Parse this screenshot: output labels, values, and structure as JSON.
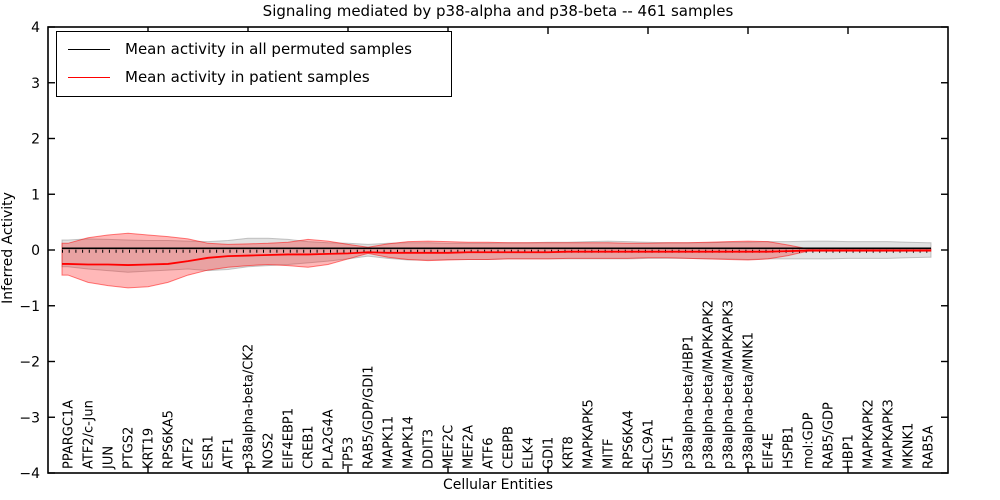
{
  "figure": {
    "background": "#ffffff"
  },
  "legend": {
    "items": [
      {
        "label": "Mean activity in all permuted samples",
        "color": "#000000"
      },
      {
        "label": "Mean activity in patient samples",
        "color": "#ff0000"
      }
    ]
  },
  "chart_data": {
    "type": "line",
    "title": "Signaling mediated by p38-alpha and p38-beta -- 461 samples",
    "xlabel": "Cellular Entities",
    "ylabel": "Inferred Activity",
    "xlim": [
      0,
      45
    ],
    "ylim": [
      -4,
      4
    ],
    "yticks": [
      -4,
      -3,
      -2,
      -1,
      0,
      1,
      2,
      3,
      4
    ],
    "xticks_major": [
      5,
      10,
      15,
      20,
      25,
      30,
      35,
      40
    ],
    "grid": false,
    "legend_position": "upper left",
    "categories": [
      "PPARGC1A",
      "ATF2/c-Jun",
      "JUN",
      "PTGS2",
      "KRT19",
      "RPS6KA5",
      "ATF2",
      "ESR1",
      "ATF1",
      "p38alpha-beta/CK2",
      "NOS2",
      "EIF4EBP1",
      "CREB1",
      "PLA2G4A",
      "TP53",
      "RAB5/GDP/GDI1",
      "MAPK11",
      "MAPK14",
      "DDIT3",
      "MEF2C",
      "MEF2A",
      "ATF6",
      "CEBPB",
      "ELK4",
      "GDI1",
      "KRT8",
      "MAPKAPK5",
      "MITF",
      "RPS6KA4",
      "SLC9A1",
      "USF1",
      "p38alpha-beta/HBP1",
      "p38alpha-beta/MAPKAPK2",
      "p38alpha-beta/MAPKAPK3",
      "p38alpha-beta/MNK1",
      "EIF4E",
      "HSPB1",
      "mol:GDP",
      "RAB5/GDP",
      "HBP1",
      "MAPKAPK2",
      "MAPKAPK3",
      "MKNK1",
      "RAB5A"
    ],
    "series": [
      {
        "name": "Mean activity in all permuted samples",
        "color": "#000000",
        "style": "solid",
        "values": [
          0.03,
          0.03,
          0.03,
          0.03,
          0.03,
          0.03,
          0.03,
          0.03,
          0.03,
          0.03,
          0.03,
          0.03,
          0.03,
          0.03,
          0.03,
          0.03,
          0.03,
          0.03,
          0.03,
          0.03,
          0.03,
          0.03,
          0.03,
          0.03,
          0.03,
          0.03,
          0.03,
          0.03,
          0.03,
          0.03,
          0.03,
          0.03,
          0.03,
          0.03,
          0.03,
          0.03,
          0.03,
          0.03,
          0.03,
          0.03,
          0.03,
          0.03,
          0.03,
          0.03
        ]
      },
      {
        "name": "Mean activity in patient samples",
        "color": "#ff0000",
        "style": "solid",
        "values": [
          -0.25,
          -0.26,
          -0.26,
          -0.27,
          -0.26,
          -0.25,
          -0.2,
          -0.14,
          -0.11,
          -0.1,
          -0.09,
          -0.08,
          -0.08,
          -0.07,
          -0.06,
          -0.04,
          -0.05,
          -0.05,
          -0.05,
          -0.05,
          -0.04,
          -0.04,
          -0.04,
          -0.04,
          -0.04,
          -0.03,
          -0.03,
          -0.03,
          -0.03,
          -0.03,
          -0.03,
          -0.03,
          -0.03,
          -0.03,
          -0.03,
          -0.03,
          -0.02,
          -0.01,
          -0.01,
          -0.01,
          -0.01,
          -0.01,
          -0.01,
          -0.01
        ]
      }
    ],
    "bands": [
      {
        "name": "permuted-envelope",
        "color": "#888888",
        "fill_opacity": 0.25,
        "edge_opacity": 0.45,
        "upper": [
          0.18,
          0.2,
          0.19,
          0.18,
          0.17,
          0.17,
          0.16,
          0.15,
          0.17,
          0.21,
          0.21,
          0.19,
          0.15,
          0.13,
          0.12,
          0.1,
          0.12,
          0.13,
          0.13,
          0.12,
          0.12,
          0.12,
          0.13,
          0.13,
          0.14,
          0.14,
          0.15,
          0.16,
          0.15,
          0.14,
          0.13,
          0.13,
          0.13,
          0.14,
          0.14,
          0.15,
          0.15,
          0.16,
          0.16,
          0.15,
          0.15,
          0.15,
          0.14,
          0.13
        ],
        "lower": [
          -0.3,
          -0.34,
          -0.37,
          -0.4,
          -0.38,
          -0.36,
          -0.34,
          -0.37,
          -0.35,
          -0.3,
          -0.28,
          -0.26,
          -0.23,
          -0.2,
          -0.16,
          -0.11,
          -0.15,
          -0.18,
          -0.18,
          -0.17,
          -0.17,
          -0.17,
          -0.16,
          -0.16,
          -0.16,
          -0.16,
          -0.16,
          -0.16,
          -0.16,
          -0.15,
          -0.15,
          -0.15,
          -0.16,
          -0.16,
          -0.17,
          -0.16,
          -0.16,
          -0.16,
          -0.16,
          -0.15,
          -0.15,
          -0.15,
          -0.14,
          -0.13
        ]
      },
      {
        "name": "patient-envelope",
        "color": "#ff0000",
        "fill_opacity": 0.28,
        "edge_opacity": 0.5,
        "upper": [
          0.12,
          0.22,
          0.27,
          0.3,
          0.27,
          0.24,
          0.2,
          0.12,
          0.1,
          0.11,
          0.12,
          0.14,
          0.19,
          0.16,
          0.1,
          0.05,
          0.11,
          0.15,
          0.16,
          0.15,
          0.14,
          0.14,
          0.13,
          0.13,
          0.13,
          0.13,
          0.13,
          0.13,
          0.12,
          0.12,
          0.13,
          0.13,
          0.14,
          0.15,
          0.16,
          0.15,
          0.09,
          0.02,
          0.02,
          0.02,
          0.02,
          0.02,
          0.02,
          0.02
        ],
        "lower": [
          -0.45,
          -0.58,
          -0.64,
          -0.68,
          -0.66,
          -0.58,
          -0.45,
          -0.36,
          -0.31,
          -0.28,
          -0.26,
          -0.28,
          -0.31,
          -0.26,
          -0.16,
          -0.06,
          -0.13,
          -0.17,
          -0.19,
          -0.18,
          -0.17,
          -0.17,
          -0.16,
          -0.16,
          -0.16,
          -0.15,
          -0.15,
          -0.15,
          -0.15,
          -0.14,
          -0.14,
          -0.15,
          -0.16,
          -0.17,
          -0.18,
          -0.16,
          -0.1,
          -0.02,
          -0.02,
          -0.02,
          -0.02,
          -0.02,
          -0.02,
          -0.02
        ]
      }
    ],
    "zero_line": {
      "y": 0,
      "style": "dotted",
      "color": "#000000"
    }
  }
}
